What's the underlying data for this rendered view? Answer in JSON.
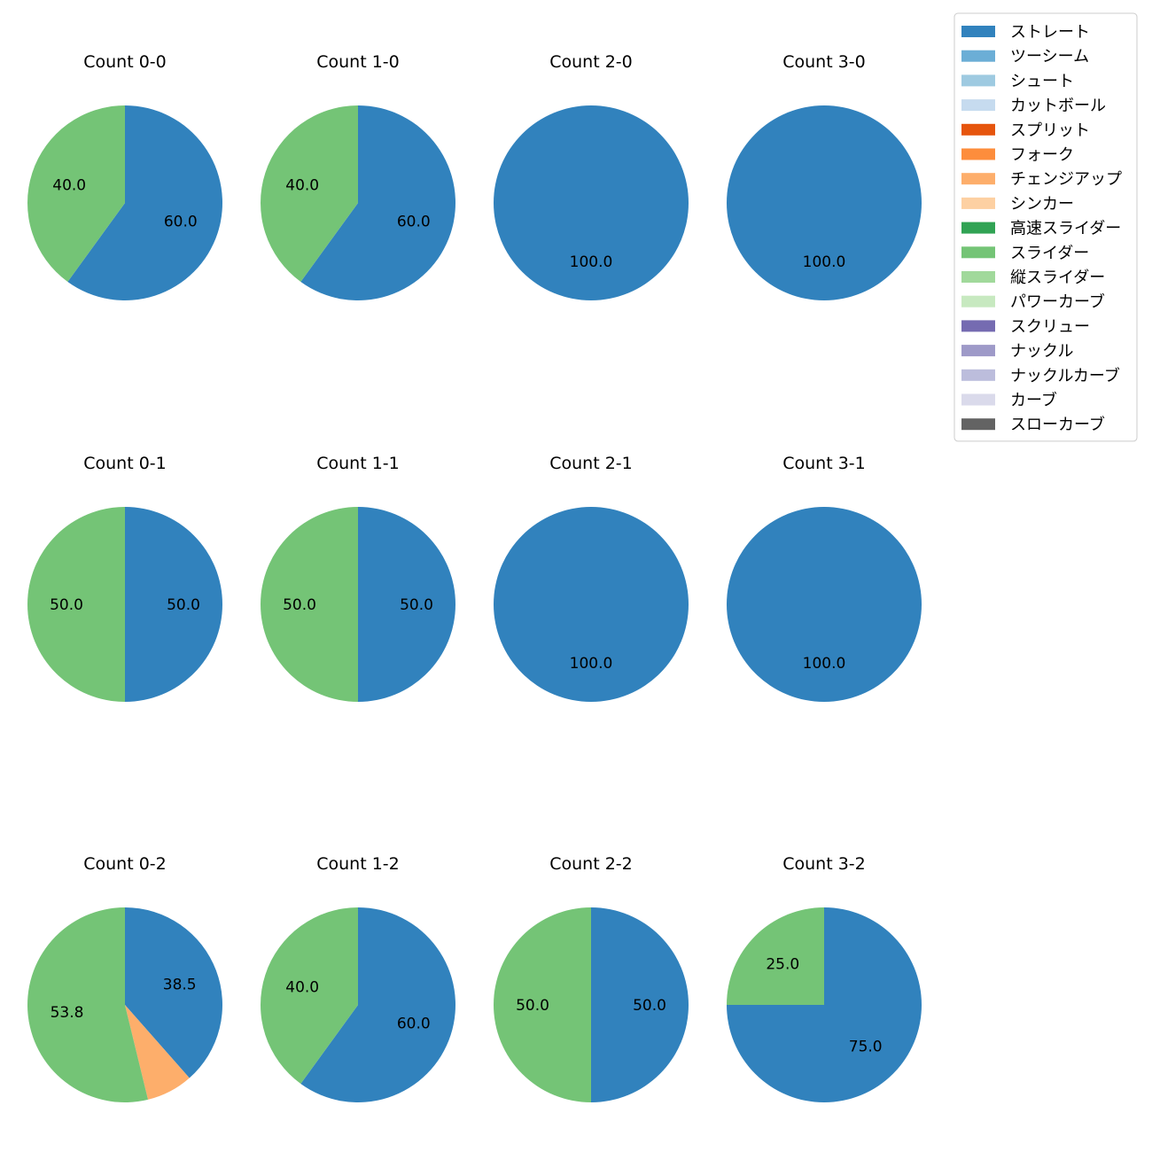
{
  "chart_data": {
    "type": "pie",
    "legend": {
      "placement": "top-right",
      "entries": [
        {
          "label": "ストレート",
          "color": "#3182bd"
        },
        {
          "label": "ツーシーム",
          "color": "#6baed6"
        },
        {
          "label": "シュート",
          "color": "#9ecae1"
        },
        {
          "label": "カットボール",
          "color": "#c6dbef"
        },
        {
          "label": "スプリット",
          "color": "#e6550d"
        },
        {
          "label": "フォーク",
          "color": "#fd8d3c"
        },
        {
          "label": "チェンジアップ",
          "color": "#fdae6b"
        },
        {
          "label": "シンカー",
          "color": "#fdd0a2"
        },
        {
          "label": "高速スライダー",
          "color": "#31a354"
        },
        {
          "label": "スライダー",
          "color": "#74c476"
        },
        {
          "label": "縦スライダー",
          "color": "#a1d99b"
        },
        {
          "label": "パワーカーブ",
          "color": "#c7e9c0"
        },
        {
          "label": "スクリュー",
          "color": "#756bb1"
        },
        {
          "label": "ナックル",
          "color": "#9e9ac8"
        },
        {
          "label": "ナックルカーブ",
          "color": "#bcbddc"
        },
        {
          "label": "カーブ",
          "color": "#dadaeb"
        },
        {
          "label": "スローカーブ",
          "color": "#636363"
        }
      ]
    },
    "pies": [
      {
        "title": "Count 0-0",
        "slices": [
          {
            "pitch": "ストレート",
            "value": 60.0,
            "label": "60.0"
          },
          {
            "pitch": "スライダー",
            "value": 40.0,
            "label": "40.0"
          }
        ]
      },
      {
        "title": "Count 1-0",
        "slices": [
          {
            "pitch": "ストレート",
            "value": 60.0,
            "label": "60.0"
          },
          {
            "pitch": "スライダー",
            "value": 40.0,
            "label": "40.0"
          }
        ]
      },
      {
        "title": "Count 2-0",
        "slices": [
          {
            "pitch": "ストレート",
            "value": 100.0,
            "label": "100.0"
          }
        ]
      },
      {
        "title": "Count 3-0",
        "slices": [
          {
            "pitch": "ストレート",
            "value": 100.0,
            "label": "100.0"
          }
        ]
      },
      {
        "title": "Count 0-1",
        "slices": [
          {
            "pitch": "ストレート",
            "value": 50.0,
            "label": "50.0"
          },
          {
            "pitch": "スライダー",
            "value": 50.0,
            "label": "50.0"
          }
        ]
      },
      {
        "title": "Count 1-1",
        "slices": [
          {
            "pitch": "ストレート",
            "value": 50.0,
            "label": "50.0"
          },
          {
            "pitch": "スライダー",
            "value": 50.0,
            "label": "50.0"
          }
        ]
      },
      {
        "title": "Count 2-1",
        "slices": [
          {
            "pitch": "ストレート",
            "value": 100.0,
            "label": "100.0"
          }
        ]
      },
      {
        "title": "Count 3-1",
        "slices": [
          {
            "pitch": "ストレート",
            "value": 100.0,
            "label": "100.0"
          }
        ]
      },
      {
        "title": "Count 0-2",
        "slices": [
          {
            "pitch": "ストレート",
            "value": 38.5,
            "label": "38.5"
          },
          {
            "pitch": "チェンジアップ",
            "value": 7.7,
            "label": ""
          },
          {
            "pitch": "スライダー",
            "value": 53.8,
            "label": "53.8"
          }
        ]
      },
      {
        "title": "Count 1-2",
        "slices": [
          {
            "pitch": "ストレート",
            "value": 60.0,
            "label": "60.0"
          },
          {
            "pitch": "スライダー",
            "value": 40.0,
            "label": "40.0"
          }
        ]
      },
      {
        "title": "Count 2-2",
        "slices": [
          {
            "pitch": "ストレート",
            "value": 50.0,
            "label": "50.0"
          },
          {
            "pitch": "スライダー",
            "value": 50.0,
            "label": "50.0"
          }
        ]
      },
      {
        "title": "Count 3-2",
        "slices": [
          {
            "pitch": "ストレート",
            "value": 75.0,
            "label": "75.0"
          },
          {
            "pitch": "スライダー",
            "value": 25.0,
            "label": "25.0"
          }
        ]
      }
    ]
  }
}
